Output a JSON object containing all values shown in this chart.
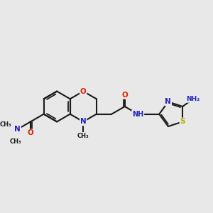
{
  "background_color": "#e8e8e8",
  "bond_color": "#1a1a1a",
  "bond_width": 1.5,
  "atom_colors": {
    "O": "#dd2200",
    "N": "#2222bb",
    "S": "#bbaa00",
    "C": "#1a1a1a"
  },
  "font_size": 7.5,
  "xlim": [
    -3.2,
    5.8
  ],
  "ylim": [
    -2.2,
    2.2
  ]
}
